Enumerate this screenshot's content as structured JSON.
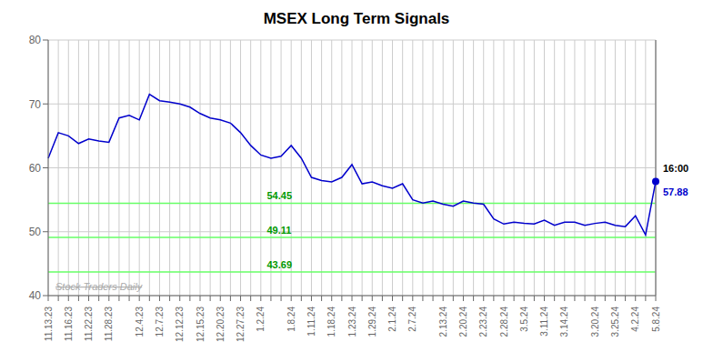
{
  "chart_data": {
    "type": "line",
    "title": "MSEX Long Term Signals",
    "categories": [
      "11.13.23",
      null,
      "11.16.23",
      null,
      "11.22.23",
      null,
      "11.28.23",
      null,
      null,
      "12.4.23",
      null,
      "12.7.23",
      null,
      "12.12.23",
      null,
      "12.15.23",
      null,
      "12.20.23",
      null,
      "12.27.23",
      null,
      "1.2.24",
      null,
      null,
      "1.8.24",
      null,
      "1.11.24",
      null,
      "1.18.24",
      null,
      "1.23.24",
      null,
      "1.29.24",
      null,
      "2.1.24",
      null,
      "2.7.24",
      null,
      null,
      "2.13.24",
      null,
      "2.20.24",
      null,
      "2.23.24",
      null,
      "2.28.24",
      null,
      "3.5.24",
      null,
      "3.11.24",
      null,
      "3.14.24",
      null,
      null,
      "3.20.24",
      null,
      "3.25.24",
      null,
      "4.2.24",
      null,
      "5.8.24"
    ],
    "values": [
      61.5,
      65.5,
      65.0,
      63.8,
      64.5,
      64.2,
      64.0,
      67.8,
      68.2,
      67.5,
      71.5,
      70.5,
      70.3,
      70.0,
      69.5,
      68.5,
      67.8,
      67.5,
      67.0,
      65.5,
      63.5,
      62.0,
      61.5,
      61.8,
      63.5,
      61.5,
      58.5,
      58.0,
      57.8,
      58.5,
      60.5,
      57.5,
      57.8,
      57.2,
      56.8,
      57.5,
      55.0,
      54.5,
      54.8,
      54.3,
      54.0,
      54.8,
      54.5,
      54.3,
      52.0,
      51.2,
      51.5,
      51.3,
      51.2,
      51.8,
      51.0,
      51.5,
      51.5,
      51.0,
      51.3,
      51.5,
      51.0,
      50.8,
      52.5,
      49.5,
      57.88
    ],
    "color": "#0000cc",
    "ylim": [
      40,
      80
    ],
    "yticks": [
      40,
      50,
      60,
      70,
      80
    ],
    "grid": true,
    "horizontal_lines": [
      54.45,
      49.11,
      43.69
    ],
    "horizontal_line_color": "#66ff66",
    "horizontal_line_label_color": "#009900",
    "vertical_line_color": "#888888",
    "marker_color": "#0000cc",
    "annotations": [
      {
        "text": "16:00",
        "color": "#000000"
      },
      {
        "text": "57.88",
        "color": "#0000cc"
      }
    ],
    "watermark": "Stock Traders Daily",
    "watermark_color": "#aaaaaa"
  }
}
